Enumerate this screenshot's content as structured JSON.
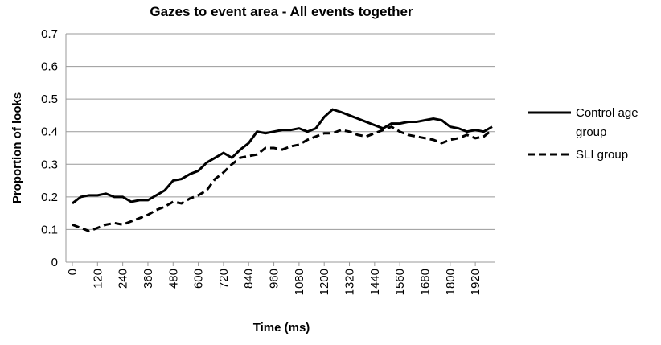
{
  "chart_data": {
    "type": "line",
    "title": "Gazes to event area - All events together",
    "x_label": "Time (ms)",
    "y_label": "Proportion of looks",
    "x": [
      0,
      40,
      80,
      120,
      160,
      200,
      240,
      280,
      320,
      360,
      400,
      440,
      480,
      520,
      560,
      600,
      640,
      680,
      720,
      760,
      800,
      840,
      880,
      920,
      960,
      1000,
      1040,
      1080,
      1120,
      1160,
      1200,
      1240,
      1280,
      1320,
      1360,
      1400,
      1440,
      1480,
      1520,
      1560,
      1600,
      1640,
      1680,
      1720,
      1760,
      1800,
      1840,
      1880,
      1920,
      1960,
      2000
    ],
    "series": [
      {
        "name": "Control age group",
        "color": "#000000",
        "dash": "solid",
        "values": [
          0.18,
          0.2,
          0.205,
          0.205,
          0.21,
          0.2,
          0.2,
          0.185,
          0.19,
          0.19,
          0.205,
          0.22,
          0.25,
          0.255,
          0.27,
          0.28,
          0.305,
          0.32,
          0.335,
          0.32,
          0.345,
          0.365,
          0.4,
          0.395,
          0.4,
          0.405,
          0.405,
          0.41,
          0.4,
          0.41,
          0.445,
          0.468,
          0.46,
          0.45,
          0.44,
          0.43,
          0.42,
          0.41,
          0.425,
          0.425,
          0.43,
          0.43,
          0.435,
          0.44,
          0.435,
          0.415,
          0.41,
          0.4,
          0.405,
          0.4,
          0.415
        ]
      },
      {
        "name": "SLI group",
        "color": "#000000",
        "dash": "dashed",
        "values": [
          0.115,
          0.105,
          0.095,
          0.105,
          0.115,
          0.12,
          0.115,
          0.125,
          0.135,
          0.145,
          0.16,
          0.17,
          0.185,
          0.18,
          0.195,
          0.205,
          0.22,
          0.255,
          0.275,
          0.3,
          0.32,
          0.325,
          0.33,
          0.35,
          0.35,
          0.345,
          0.355,
          0.36,
          0.375,
          0.385,
          0.395,
          0.395,
          0.405,
          0.4,
          0.39,
          0.385,
          0.395,
          0.405,
          0.415,
          0.4,
          0.39,
          0.385,
          0.38,
          0.375,
          0.365,
          0.375,
          0.38,
          0.39,
          0.38,
          0.385,
          0.405
        ]
      }
    ],
    "xlim": [
      0,
      2000
    ],
    "xticks": [
      0,
      120,
      240,
      360,
      480,
      600,
      720,
      840,
      960,
      1080,
      1200,
      1320,
      1440,
      1560,
      1680,
      1800,
      1920
    ],
    "ylim": [
      0,
      0.7
    ],
    "yticks": [
      0,
      0.1,
      0.2,
      0.3,
      0.4,
      0.5,
      0.6,
      0.7
    ],
    "grid": true,
    "legend": "right"
  }
}
